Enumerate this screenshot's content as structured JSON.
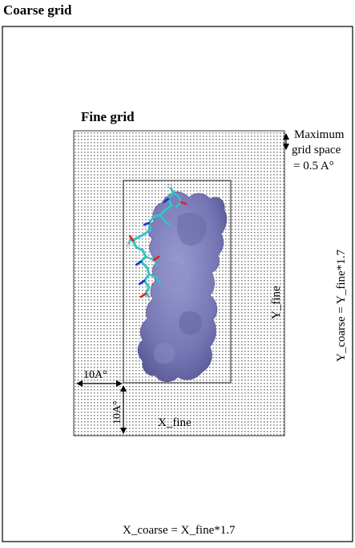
{
  "diagram": {
    "coarse_title": "Coarse grid",
    "fine_title": "Fine grid",
    "max_spacing_line1": "Maximum",
    "max_spacing_line2": "grid space",
    "max_spacing_line3": "= 0.5 A°",
    "y_fine_label": "Y_fine",
    "x_fine_label": "X_fine",
    "y_coarse_label": "Y_coarse = Y_fine*1.7",
    "x_coarse_label": "X_coarse = X_fine*1.7",
    "margin_horizontal": "10A°",
    "margin_vertical": "10A°",
    "colors": {
      "protein_surface": "#7676b4",
      "ligand_carbon": "#33c4c4",
      "ligand_nitrogen": "#2233cc",
      "ligand_oxygen": "#dd2222",
      "grid_dots": "#8a8a8a"
    }
  }
}
